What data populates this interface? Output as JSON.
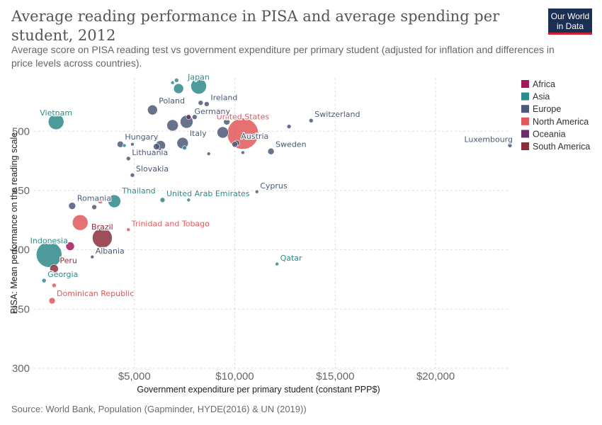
{
  "header": {
    "title": "Average reading performance in PISA and average spending per student, 2012",
    "subtitle": "Average score on PISA reading test vs government expenditure per primary student (adjusted for inflation and differences in price levels across countries).",
    "logo_line1": "Our World",
    "logo_line2": "in Data"
  },
  "footer": {
    "source": "Source: World Bank, Population (Gapminder, HYDE(2016) & UN (2019))"
  },
  "colors": {
    "Africa": "#a2195b",
    "Asia": "#2f8a8a",
    "Europe": "#4c5a77",
    "North America": "#e0585b",
    "Oceania": "#6a2e6b",
    "South America": "#8c2f3b"
  },
  "chart_data": {
    "type": "scatter",
    "xlabel": "Government expenditure per primary student (constant PPP$)",
    "ylabel": "PISA: Mean performance on the reading scale",
    "xlim": [
      0,
      23700
    ],
    "ylim": [
      300,
      545
    ],
    "xticks": [
      {
        "v": 5000,
        "label": "$5,000"
      },
      {
        "v": 10000,
        "label": "$10,000"
      },
      {
        "v": 15000,
        "label": "$15,000"
      },
      {
        "v": 20000,
        "label": "$20,000"
      }
    ],
    "yticks": [
      {
        "v": 300,
        "label": "300"
      },
      {
        "v": 350,
        "label": "350"
      },
      {
        "v": 400,
        "label": "400"
      },
      {
        "v": 450,
        "label": "450"
      },
      {
        "v": 500,
        "label": "500"
      }
    ],
    "grid": true,
    "legend": {
      "position": "right",
      "entries": [
        "Africa",
        "Asia",
        "Europe",
        "North America",
        "Oceania",
        "South America"
      ]
    },
    "points": [
      {
        "x": 750,
        "y": 396,
        "r": 18,
        "region": "Asia",
        "label": "Indonesia"
      },
      {
        "x": 3400,
        "y": 410,
        "r": 14,
        "region": "South America",
        "label": "Brazil"
      },
      {
        "x": 10400,
        "y": 498,
        "r": 22,
        "region": "North America",
        "label": "United States"
      },
      {
        "x": 1100,
        "y": 508,
        "r": 11,
        "region": "Asia",
        "label": "Vietnam"
      },
      {
        "x": 8200,
        "y": 538,
        "r": 11,
        "region": "Asia",
        "label": "Japan"
      },
      {
        "x": 2300,
        "y": 423,
        "r": 11,
        "region": "North America",
        "label": ""
      },
      {
        "x": 4000,
        "y": 441,
        "r": 9,
        "region": "Asia",
        "label": "Thailand"
      },
      {
        "x": 7600,
        "y": 508,
        "r": 9,
        "region": "Europe",
        "label": "Germany"
      },
      {
        "x": 6900,
        "y": 505,
        "r": 8,
        "region": "Europe",
        "label": ""
      },
      {
        "x": 9400,
        "y": 499,
        "r": 8,
        "region": "Europe",
        "label": ""
      },
      {
        "x": 7400,
        "y": 490,
        "r": 8,
        "region": "Europe",
        "label": "Italy"
      },
      {
        "x": 6300,
        "y": 488,
        "r": 7,
        "region": "Europe",
        "label": ""
      },
      {
        "x": 5900,
        "y": 518,
        "r": 7,
        "region": "Europe",
        "label": "Poland"
      },
      {
        "x": 7200,
        "y": 536,
        "r": 7,
        "region": "Asia",
        "label": ""
      },
      {
        "x": 10100,
        "y": 490,
        "r": 4,
        "region": "Europe",
        "label": "Austria"
      },
      {
        "x": 1800,
        "y": 403,
        "r": 6,
        "region": "Africa",
        "label": ""
      },
      {
        "x": 1000,
        "y": 384,
        "r": 6,
        "region": "South America",
        "label": "Peru"
      },
      {
        "x": 1900,
        "y": 437,
        "r": 5,
        "region": "Europe",
        "label": "Romania"
      },
      {
        "x": 11800,
        "y": 483,
        "r": 4.5,
        "region": "Europe",
        "label": "Sweden"
      },
      {
        "x": 9600,
        "y": 508,
        "r": 4.5,
        "region": "Europe",
        "label": ""
      },
      {
        "x": 6100,
        "y": 487,
        "r": 4.5,
        "region": "Europe",
        "label": ""
      },
      {
        "x": 4300,
        "y": 489,
        "r": 4.5,
        "region": "Europe",
        "label": "Hungary"
      },
      {
        "x": 900,
        "y": 357,
        "r": 4.5,
        "region": "North America",
        "label": "Dominican Republic"
      },
      {
        "x": 8300,
        "y": 524,
        "r": 3.5,
        "region": "Europe",
        "label": ""
      },
      {
        "x": 8600,
        "y": 523,
        "r": 3.5,
        "region": "Europe",
        "label": "Ireland"
      },
      {
        "x": 8000,
        "y": 512,
        "r": 3.5,
        "region": "Europe",
        "label": ""
      },
      {
        "x": 7700,
        "y": 512,
        "r": 3.5,
        "region": "Oceania",
        "label": ""
      },
      {
        "x": 13800,
        "y": 509,
        "r": 3,
        "region": "Europe",
        "label": "Switzerland"
      },
      {
        "x": 12700,
        "y": 504,
        "r": 3,
        "region": "Europe",
        "label": ""
      },
      {
        "x": 23700,
        "y": 488,
        "r": 3,
        "region": "Europe",
        "label": "Luxembourg"
      },
      {
        "x": 4700,
        "y": 477,
        "r": 3,
        "region": "Europe",
        "label": "Lithuania"
      },
      {
        "x": 4900,
        "y": 463,
        "r": 3,
        "region": "Europe",
        "label": "Slovakia"
      },
      {
        "x": 6400,
        "y": 442,
        "r": 3.5,
        "region": "Asia",
        "label": "United Arab Emirates"
      },
      {
        "x": 7700,
        "y": 442,
        "r": 2.5,
        "region": "Asia",
        "label": ""
      },
      {
        "x": 11100,
        "y": 449,
        "r": 2.5,
        "region": "Europe",
        "label": "Cyprus"
      },
      {
        "x": 4700,
        "y": 417,
        "r": 2.5,
        "region": "North America",
        "label": "Trinidad and Tobago"
      },
      {
        "x": 2900,
        "y": 394,
        "r": 2.5,
        "region": "Europe",
        "label": "Albania"
      },
      {
        "x": 12100,
        "y": 388,
        "r": 2.5,
        "region": "Asia",
        "label": "Qatar"
      },
      {
        "x": 500,
        "y": 374,
        "r": 3,
        "region": "Asia",
        "label": "Georgia"
      },
      {
        "x": 1000,
        "y": 370,
        "r": 3,
        "region": "North America",
        "label": ""
      },
      {
        "x": 3000,
        "y": 436,
        "r": 3.5,
        "region": "Europe",
        "label": ""
      },
      {
        "x": 3300,
        "y": 441,
        "r": 3.5,
        "region": "North America",
        "label": ""
      },
      {
        "x": 7500,
        "y": 486,
        "r": 3,
        "region": "Asia",
        "label": ""
      },
      {
        "x": 7100,
        "y": 543,
        "r": 3,
        "region": "Asia",
        "label": ""
      },
      {
        "x": 6900,
        "y": 541,
        "r": 2.5,
        "region": "Asia",
        "label": ""
      },
      {
        "x": 4900,
        "y": 489,
        "r": 2.5,
        "region": "Europe",
        "label": ""
      },
      {
        "x": 10000,
        "y": 489,
        "r": 4,
        "region": "Europe",
        "label": ""
      },
      {
        "x": 8700,
        "y": 481,
        "r": 2.5,
        "region": "Europe",
        "label": ""
      },
      {
        "x": 10400,
        "y": 482,
        "r": 2.5,
        "region": "Europe",
        "label": ""
      },
      {
        "x": 4500,
        "y": 488,
        "r": 2.5,
        "region": "Asia",
        "label": ""
      }
    ]
  }
}
